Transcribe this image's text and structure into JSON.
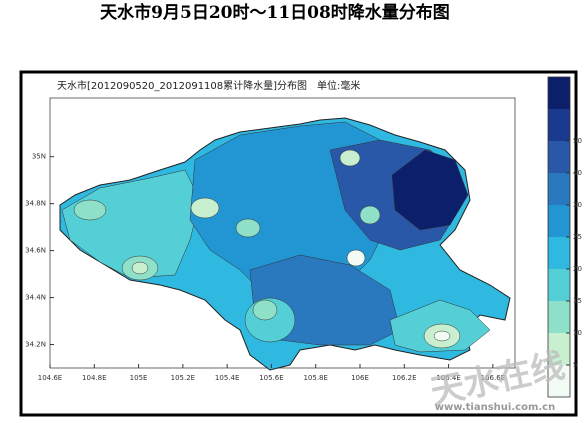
{
  "title": "天水市9月5日20时～11日08时降水量分布图",
  "map": {
    "title": "天水市[2012090520_2012091108累计降水量]分布图　单位:毫米",
    "xlim": [
      104.6,
      106.7
    ],
    "ylim": [
      34.1,
      35.25
    ],
    "xticks": [
      {
        "value": 104.6,
        "label": "104.6E"
      },
      {
        "value": 104.8,
        "label": "104.8E"
      },
      {
        "value": 105.0,
        "label": "105E"
      },
      {
        "value": 105.2,
        "label": "105.2E"
      },
      {
        "value": 105.4,
        "label": "105.4E"
      },
      {
        "value": 105.6,
        "label": "105.6E"
      },
      {
        "value": 105.8,
        "label": "105.8E"
      },
      {
        "value": 106.0,
        "label": "106E"
      },
      {
        "value": 106.2,
        "label": "106.2E"
      },
      {
        "value": 106.4,
        "label": "106.4E"
      },
      {
        "value": 106.6,
        "label": "106.6E"
      }
    ],
    "yticks": [
      {
        "value": 34.2,
        "label": "34.2N"
      },
      {
        "value": 34.4,
        "label": "34.4N"
      },
      {
        "value": 34.6,
        "label": "34.6N"
      },
      {
        "value": 34.8,
        "label": "34.8N"
      },
      {
        "value": 35.0,
        "label": "35N"
      }
    ],
    "colorbar": {
      "ticks": [
        5,
        10,
        15,
        20,
        25,
        30,
        40,
        50
      ],
      "colors": [
        "#f2fbf4",
        "#c8f0d0",
        "#8fe0c8",
        "#55cfd6",
        "#2fb8e0",
        "#2196d2",
        "#2a78be",
        "#2a58a8",
        "#1a3a90",
        "#0c1f6a"
      ]
    }
  },
  "watermark": {
    "text": "天水在线",
    "url": "www.tianshui.com.cn"
  }
}
